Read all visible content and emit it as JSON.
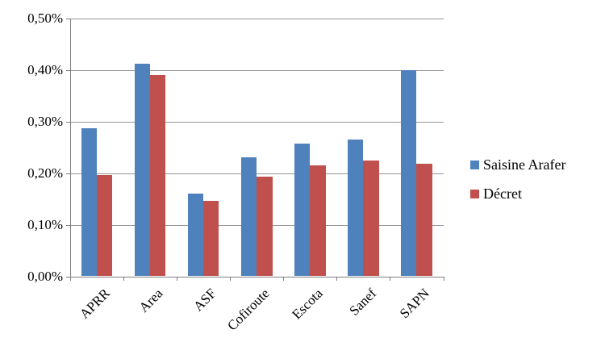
{
  "chart_data": {
    "type": "bar",
    "title": "",
    "xlabel": "",
    "ylabel": "",
    "categories": [
      "APRR",
      "Area",
      "ASF",
      "Cofiroute",
      "Escota",
      "Sanef",
      "SAPN"
    ],
    "series": [
      {
        "name": "Saisine Arafer",
        "color": "#4F81BD",
        "values": [
          0.287,
          0.413,
          0.16,
          0.231,
          0.257,
          0.266,
          0.4
        ]
      },
      {
        "name": "Décret",
        "color": "#C0504D",
        "values": [
          0.197,
          0.39,
          0.146,
          0.194,
          0.215,
          0.225,
          0.218
        ]
      }
    ],
    "ylim": [
      0,
      0.5
    ],
    "yticks": [
      0,
      0.1,
      0.2,
      0.3,
      0.4,
      0.5
    ],
    "ytick_labels": [
      "0,00%",
      "0,10%",
      "0,20%",
      "0,30%",
      "0,40%",
      "0,50%"
    ],
    "value_unit": "percent",
    "decimal_style": "french-comma",
    "grid": "horizontal",
    "legend_position": "right",
    "x_label_rotation_deg": 45
  },
  "colors": {
    "background": "#FFFFFF",
    "gridline": "#969696",
    "axis": "#7F7F7F",
    "text": "#000000",
    "series_blue": "#4F81BD",
    "series_red": "#C0504D"
  }
}
